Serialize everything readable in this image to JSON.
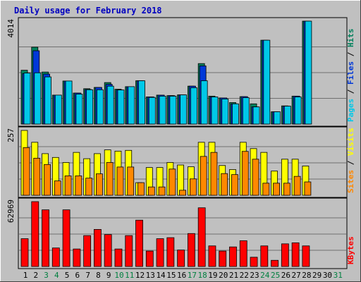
{
  "chart_data": {
    "title": "Daily usage for February 2018",
    "days": [
      "1",
      "2",
      "3",
      "4",
      "5",
      "6",
      "7",
      "8",
      "9",
      "10",
      "11",
      "12",
      "13",
      "14",
      "15",
      "16",
      "17",
      "18",
      "19",
      "20",
      "21",
      "22",
      "23",
      "24",
      "25",
      "26",
      "27",
      "28",
      "29",
      "30",
      "31"
    ],
    "weekend_days": [
      "3",
      "4",
      "10",
      "11",
      "17",
      "18",
      "24",
      "25",
      "31"
    ],
    "panels": [
      {
        "type": "bar",
        "ymax": 4014,
        "max_label": "4014",
        "series": [
          {
            "name": "Hits",
            "color": "#00805c",
            "values": [
              2100,
              3000,
              2030,
              1130,
              1680,
              1210,
              1380,
              1430,
              1620,
              1360,
              1460,
              1690,
              1060,
              1130,
              1110,
              1140,
              1480,
              2360,
              1090,
              1020,
              840,
              1070,
              790,
              3270,
              480,
              710,
              1090,
              4014,
              0,
              0,
              0
            ]
          },
          {
            "name": "Files",
            "color": "#0038d8",
            "values": [
              1970,
              2860,
              1950,
              1130,
              1680,
              1210,
              1350,
              1430,
              1550,
              1330,
              1460,
              1690,
              1060,
              1130,
              1110,
              1140,
              1480,
              2270,
              1060,
              1020,
              790,
              1070,
              670,
              3270,
              480,
              700,
              1090,
              4014,
              0,
              0,
              0
            ]
          },
          {
            "name": "Pages",
            "color": "#00c8e8",
            "values": [
              1990,
              2000,
              1840,
              1130,
              1680,
              1170,
              1340,
              1340,
              1480,
              1330,
              1460,
              1690,
              1040,
              1090,
              1090,
              1140,
              1420,
              1690,
              1060,
              980,
              790,
              1030,
              670,
              3270,
              480,
              700,
              1060,
              4014,
              0,
              0,
              0
            ]
          }
        ],
        "legend": [
          {
            "text": "Pages",
            "color": "#00c8e8"
          },
          {
            "text": " / ",
            "color": "#000000"
          },
          {
            "text": "Files",
            "color": "#0038d8"
          },
          {
            "text": " / ",
            "color": "#000000"
          },
          {
            "text": "Hits",
            "color": "#00805c"
          }
        ]
      },
      {
        "type": "bar",
        "ymax": 257,
        "max_label": "257",
        "series": [
          {
            "name": "Visits",
            "color": "#ffff00",
            "values": [
              257,
              210,
              165,
              150,
              130,
              170,
              145,
              165,
              180,
              175,
              178,
              50,
              110,
              110,
              130,
              120,
              113,
              210,
              210,
              118,
              102,
              210,
              185,
              170,
              96,
              143,
              143,
              116,
              0,
              0,
              0
            ]
          },
          {
            "name": "Sites",
            "color": "#ff8800",
            "values": [
              189,
              147,
              122,
              57,
              77,
              77,
              68,
              85,
              130,
              112,
              112,
              50,
              33,
              33,
              104,
              20,
              65,
              154,
              170,
              86,
              82,
              174,
              143,
              48,
              48,
              48,
              75,
              53,
              0,
              0,
              0
            ]
          }
        ],
        "legend": [
          {
            "text": "Sites",
            "color": "#ff8800"
          },
          {
            "text": " / ",
            "color": "#000000"
          },
          {
            "text": "Visits",
            "color": "#ffff00"
          }
        ]
      },
      {
        "type": "bar",
        "ymax": 62969,
        "max_label": "62969",
        "series": [
          {
            "name": "KBytes",
            "color": "#ff0000",
            "values": [
              27000,
              62969,
              55000,
              18000,
              55000,
              17000,
              30000,
              36000,
              31000,
              17000,
              30000,
              45000,
              15000,
              27000,
              28000,
              16000,
              32000,
              57000,
              20000,
              15000,
              19000,
              25000,
              9000,
              20000,
              6000,
              22000,
              23000,
              20000,
              0,
              0,
              0
            ]
          }
        ],
        "legend": [
          {
            "text": "KBytes",
            "color": "#ff0000"
          }
        ]
      }
    ]
  },
  "colors": {
    "frame": "#c0c0c0",
    "plot_bg": "#c0c0c0",
    "title": "#0000c0",
    "axis_text": "#000000",
    "weekend_text": "#008040",
    "gridline": "#707070"
  }
}
